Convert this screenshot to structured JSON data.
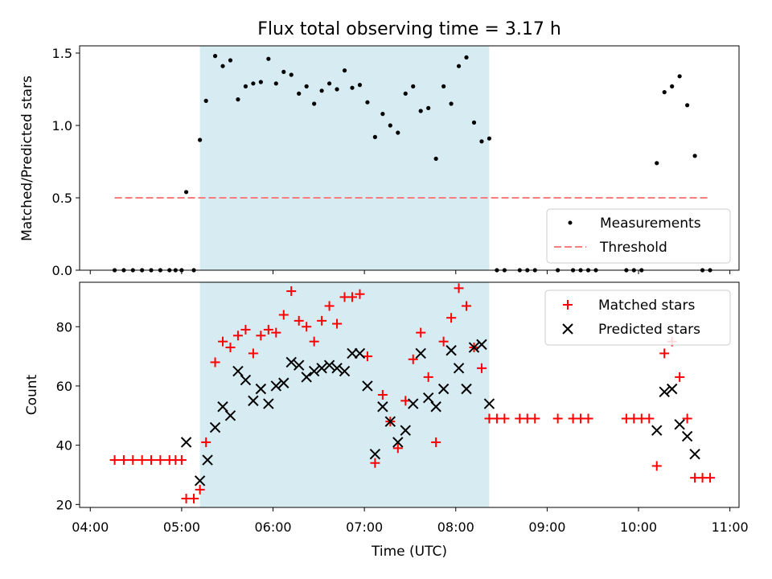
{
  "chart_data": {
    "title": "Flux total observing time = 3.17 h",
    "xlabel": "Time (UTC)",
    "x_ticks": [
      "04:00",
      "05:00",
      "06:00",
      "07:00",
      "08:00",
      "09:00",
      "10:00",
      "11:00"
    ],
    "x_range": [
      "03:53",
      "11:06"
    ],
    "shaded_span": {
      "start": "05:12",
      "end": "08:22",
      "color": "#add8e6"
    },
    "panels": [
      {
        "type": "scatter",
        "ylabel": "Matched/Predicted stars",
        "ylim": [
          0,
          1.55
        ],
        "y_ticks": [
          "0.0",
          "0.5",
          "1.0",
          "1.5"
        ],
        "legend_position": "lower-right",
        "series": [
          {
            "name": "Measurements",
            "marker": "dot",
            "color": "#000000",
            "points": [
              [
                "04:16",
                0
              ],
              [
                "04:22",
                0
              ],
              [
                "04:28",
                0
              ],
              [
                "04:34",
                0
              ],
              [
                "04:40",
                0
              ],
              [
                "04:46",
                0
              ],
              [
                "04:52",
                0
              ],
              [
                "04:56",
                0
              ],
              [
                "05:00",
                0
              ],
              [
                "05:03",
                0.54
              ],
              [
                "05:08",
                0
              ],
              [
                "05:12",
                0.9
              ],
              [
                "05:16",
                1.17
              ],
              [
                "05:22",
                1.48
              ],
              [
                "05:27",
                1.41
              ],
              [
                "05:32",
                1.45
              ],
              [
                "05:37",
                1.18
              ],
              [
                "05:42",
                1.27
              ],
              [
                "05:47",
                1.29
              ],
              [
                "05:52",
                1.3
              ],
              [
                "05:57",
                1.46
              ],
              [
                "06:02",
                1.29
              ],
              [
                "06:07",
                1.37
              ],
              [
                "06:12",
                1.35
              ],
              [
                "06:17",
                1.22
              ],
              [
                "06:22",
                1.27
              ],
              [
                "06:27",
                1.15
              ],
              [
                "06:32",
                1.24
              ],
              [
                "06:37",
                1.29
              ],
              [
                "06:42",
                1.25
              ],
              [
                "06:47",
                1.38
              ],
              [
                "06:52",
                1.26
              ],
              [
                "06:57",
                1.28
              ],
              [
                "07:02",
                1.16
              ],
              [
                "07:07",
                0.92
              ],
              [
                "07:12",
                1.08
              ],
              [
                "07:17",
                1.0
              ],
              [
                "07:22",
                0.95
              ],
              [
                "07:27",
                1.22
              ],
              [
                "07:32",
                1.27
              ],
              [
                "07:37",
                1.1
              ],
              [
                "07:42",
                1.12
              ],
              [
                "07:47",
                0.77
              ],
              [
                "07:52",
                1.27
              ],
              [
                "07:57",
                1.15
              ],
              [
                "08:02",
                1.41
              ],
              [
                "08:07",
                1.47
              ],
              [
                "08:12",
                1.02
              ],
              [
                "08:17",
                0.89
              ],
              [
                "08:22",
                0.91
              ],
              [
                "08:27",
                0
              ],
              [
                "08:32",
                0
              ],
              [
                "08:42",
                0
              ],
              [
                "08:47",
                0
              ],
              [
                "08:52",
                0
              ],
              [
                "09:07",
                0
              ],
              [
                "09:17",
                0
              ],
              [
                "09:22",
                0
              ],
              [
                "09:27",
                0
              ],
              [
                "09:32",
                0
              ],
              [
                "09:52",
                0
              ],
              [
                "09:57",
                0
              ],
              [
                "10:02",
                0
              ],
              [
                "10:12",
                0.74
              ],
              [
                "10:17",
                1.23
              ],
              [
                "10:22",
                1.27
              ],
              [
                "10:27",
                1.34
              ],
              [
                "10:32",
                1.14
              ],
              [
                "10:37",
                0.79
              ],
              [
                "10:42",
                0
              ],
              [
                "10:47",
                0
              ]
            ]
          },
          {
            "name": "Threshold",
            "marker": "dashed-line",
            "color": "#f87e7e",
            "points": [
              [
                "04:16",
                0.5
              ],
              [
                "10:47",
                0.5
              ]
            ]
          }
        ]
      },
      {
        "type": "scatter",
        "ylabel": "Count",
        "ylim": [
          19,
          95
        ],
        "y_ticks": [
          "20",
          "40",
          "60",
          "80"
        ],
        "legend_position": "upper-right",
        "series": [
          {
            "name": "Matched stars",
            "marker": "plus",
            "color": "#ff0000",
            "points": [
              [
                "04:16",
                35
              ],
              [
                "04:22",
                35
              ],
              [
                "04:28",
                35
              ],
              [
                "04:34",
                35
              ],
              [
                "04:40",
                35
              ],
              [
                "04:46",
                35
              ],
              [
                "04:52",
                35
              ],
              [
                "04:56",
                35
              ],
              [
                "05:00",
                35
              ],
              [
                "05:03",
                22
              ],
              [
                "05:08",
                22
              ],
              [
                "05:12",
                25
              ],
              [
                "05:16",
                41
              ],
              [
                "05:22",
                68
              ],
              [
                "05:27",
                75
              ],
              [
                "05:32",
                73
              ],
              [
                "05:37",
                77
              ],
              [
                "05:42",
                79
              ],
              [
                "05:47",
                71
              ],
              [
                "05:52",
                77
              ],
              [
                "05:57",
                79
              ],
              [
                "06:02",
                78
              ],
              [
                "06:07",
                84
              ],
              [
                "06:12",
                92
              ],
              [
                "06:17",
                82
              ],
              [
                "06:22",
                80
              ],
              [
                "06:27",
                75
              ],
              [
                "06:32",
                82
              ],
              [
                "06:37",
                87
              ],
              [
                "06:42",
                81
              ],
              [
                "06:47",
                90
              ],
              [
                "06:52",
                90
              ],
              [
                "06:57",
                91
              ],
              [
                "07:02",
                70
              ],
              [
                "07:07",
                34
              ],
              [
                "07:12",
                57
              ],
              [
                "07:17",
                48
              ],
              [
                "07:22",
                39
              ],
              [
                "07:27",
                55
              ],
              [
                "07:32",
                69
              ],
              [
                "07:37",
                78
              ],
              [
                "07:42",
                63
              ],
              [
                "07:47",
                41
              ],
              [
                "07:52",
                75
              ],
              [
                "07:57",
                83
              ],
              [
                "08:02",
                93
              ],
              [
                "08:07",
                87
              ],
              [
                "08:12",
                73
              ],
              [
                "08:17",
                66
              ],
              [
                "08:22",
                49
              ],
              [
                "08:27",
                49
              ],
              [
                "08:32",
                49
              ],
              [
                "08:42",
                49
              ],
              [
                "08:47",
                49
              ],
              [
                "08:52",
                49
              ],
              [
                "09:07",
                49
              ],
              [
                "09:17",
                49
              ],
              [
                "09:22",
                49
              ],
              [
                "09:27",
                49
              ],
              [
                "09:52",
                49
              ],
              [
                "09:57",
                49
              ],
              [
                "10:02",
                49
              ],
              [
                "10:07",
                49
              ],
              [
                "10:12",
                33
              ],
              [
                "10:17",
                71
              ],
              [
                "10:22",
                75
              ],
              [
                "10:27",
                63
              ],
              [
                "10:32",
                49
              ],
              [
                "10:37",
                29
              ],
              [
                "10:42",
                29
              ],
              [
                "10:47",
                29
              ]
            ]
          },
          {
            "name": "Predicted stars",
            "marker": "x",
            "color": "#000000",
            "points": [
              [
                "05:03",
                41
              ],
              [
                "05:12",
                28
              ],
              [
                "05:17",
                35
              ],
              [
                "05:22",
                46
              ],
              [
                "05:27",
                53
              ],
              [
                "05:32",
                50
              ],
              [
                "05:37",
                65
              ],
              [
                "05:42",
                62
              ],
              [
                "05:47",
                55
              ],
              [
                "05:52",
                59
              ],
              [
                "05:57",
                54
              ],
              [
                "06:02",
                60
              ],
              [
                "06:07",
                61
              ],
              [
                "06:12",
                68
              ],
              [
                "06:17",
                67
              ],
              [
                "06:22",
                63
              ],
              [
                "06:27",
                65
              ],
              [
                "06:32",
                66
              ],
              [
                "06:37",
                67
              ],
              [
                "06:42",
                66
              ],
              [
                "06:47",
                65
              ],
              [
                "06:52",
                71
              ],
              [
                "06:57",
                71
              ],
              [
                "07:02",
                60
              ],
              [
                "07:07",
                37
              ],
              [
                "07:12",
                53
              ],
              [
                "07:17",
                48
              ],
              [
                "07:22",
                41
              ],
              [
                "07:27",
                45
              ],
              [
                "07:32",
                54
              ],
              [
                "07:37",
                71
              ],
              [
                "07:42",
                56
              ],
              [
                "07:47",
                53
              ],
              [
                "07:52",
                59
              ],
              [
                "07:57",
                72
              ],
              [
                "08:02",
                66
              ],
              [
                "08:07",
                59
              ],
              [
                "08:12",
                73
              ],
              [
                "08:17",
                74
              ],
              [
                "08:22",
                54
              ],
              [
                "10:12",
                45
              ],
              [
                "10:17",
                58
              ],
              [
                "10:22",
                59
              ],
              [
                "10:27",
                47
              ],
              [
                "10:32",
                43
              ],
              [
                "10:37",
                37
              ]
            ]
          }
        ]
      }
    ]
  }
}
